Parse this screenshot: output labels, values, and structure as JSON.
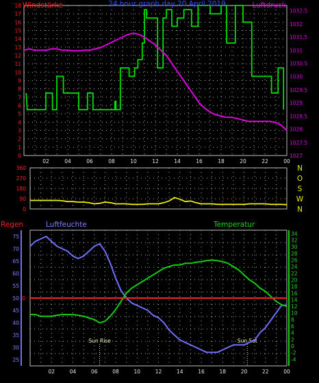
{
  "colors": {
    "background": "#000000",
    "frame": "#c0c0c0",
    "grid": "#b0b0b0",
    "wind": "#00e000",
    "pressure": "#e000e0",
    "direction": "#f0f000",
    "humidity": "#7070ff",
    "temperature": "#10d010",
    "rain": "#ff2020",
    "title": "#3050ff",
    "tick_red": "#ff2020",
    "tick_blue": "#8080ff",
    "tick_green": "#20d020",
    "tick_white": "#e8e8e8",
    "tick_yellow": "#e8e800",
    "sun_label": "#f0f0b0"
  },
  "chart_data": [
    {
      "type": "line",
      "title": "24 hour graph day   20 April 2019",
      "x_tick_labels": [
        "02",
        "04",
        "06",
        "08",
        "10",
        "12",
        "14",
        "16",
        "18",
        "20",
        "22",
        "00"
      ],
      "xlim": [
        0,
        24
      ],
      "grid": true,
      "series": [
        {
          "name": "Windstärke",
          "axis": "left",
          "ylim": [
            0,
            18
          ],
          "y_tick_labels": [
            "0",
            "1",
            "2",
            "3",
            "4",
            "5",
            "6",
            "7",
            "8",
            "9",
            "10",
            "11",
            "12",
            "13",
            "14",
            "15",
            "16",
            "17",
            "18"
          ],
          "points": [
            [
              0.2,
              7.5
            ],
            [
              0.3,
              5.5
            ],
            [
              2.0,
              5.5
            ],
            [
              2.0,
              7.5
            ],
            [
              2.6,
              7.5
            ],
            [
              2.6,
              5.5
            ],
            [
              3.0,
              5.5
            ],
            [
              3.0,
              9.5
            ],
            [
              3.6,
              9.5
            ],
            [
              3.6,
              7.5
            ],
            [
              5.0,
              7.5
            ],
            [
              5.0,
              5.5
            ],
            [
              5.8,
              5.5
            ],
            [
              5.8,
              7.5
            ],
            [
              6.3,
              7.5
            ],
            [
              6.3,
              5.5
            ],
            [
              8.3,
              5.5
            ],
            [
              8.3,
              6.5
            ],
            [
              8.4,
              6.5
            ],
            [
              8.4,
              5.5
            ],
            [
              8.8,
              5.5
            ],
            [
              8.8,
              10.5
            ],
            [
              9.6,
              10.5
            ],
            [
              9.6,
              9.5
            ],
            [
              10.1,
              9.5
            ],
            [
              10.1,
              10.5
            ],
            [
              10.4,
              10.5
            ],
            [
              10.4,
              11.5
            ],
            [
              10.8,
              11.5
            ],
            [
              10.8,
              13.5
            ],
            [
              11.0,
              13.5
            ],
            [
              11.0,
              17.5
            ],
            [
              11.2,
              17.5
            ],
            [
              11.2,
              16.5
            ],
            [
              12.2,
              16.5
            ],
            [
              12.2,
              10.5
            ],
            [
              12.7,
              10.5
            ],
            [
              12.7,
              16.5
            ],
            [
              13.0,
              16.5
            ],
            [
              13.0,
              17.5
            ],
            [
              13.5,
              17.5
            ],
            [
              13.5,
              15.5
            ],
            [
              14.0,
              15.5
            ],
            [
              14.0,
              16.5
            ],
            [
              14.6,
              16.5
            ],
            [
              14.6,
              17.5
            ],
            [
              15.3,
              17.5
            ],
            [
              15.3,
              15.5
            ],
            [
              15.9,
              15.5
            ],
            [
              15.9,
              18.0
            ],
            [
              17.0,
              18.0
            ],
            [
              17.0,
              17.0
            ],
            [
              18.0,
              17.0
            ],
            [
              18.0,
              18.0
            ],
            [
              18.5,
              18.0
            ],
            [
              18.5,
              13.5
            ],
            [
              19.3,
              13.5
            ],
            [
              19.3,
              18.0
            ],
            [
              20.0,
              18.0
            ],
            [
              20.0,
              16.0
            ],
            [
              20.8,
              16.0
            ],
            [
              20.8,
              9.5
            ],
            [
              22.6,
              9.5
            ],
            [
              22.6,
              7.5
            ],
            [
              23.2,
              7.5
            ],
            [
              23.2,
              10.5
            ],
            [
              23.7,
              10.5
            ],
            [
              23.7,
              5.5
            ]
          ]
        },
        {
          "name": "Luftdruck",
          "axis": "right",
          "ylim": [
            1027,
            1032.7
          ],
          "y_tick_labels": [
            "1027",
            "1027.5",
            "1028",
            "1028.5",
            "1029",
            "1029.5",
            "1030",
            "1030.5",
            "1031",
            "1031.5",
            "1032",
            "1032.5"
          ],
          "x": [
            0,
            0.5,
            1,
            1.5,
            2,
            2.5,
            3,
            3.5,
            4,
            4.5,
            5,
            5.5,
            6,
            6.5,
            7,
            7.5,
            8,
            8.5,
            9,
            9.5,
            10,
            10.5,
            11,
            11.5,
            12,
            12.5,
            13,
            13.5,
            14,
            14.5,
            15,
            15.5,
            16,
            16.5,
            17,
            17.5,
            18,
            18.5,
            19,
            19.5,
            20,
            20.5,
            21,
            21.5,
            22,
            22.5,
            23,
            23.5,
            24
          ],
          "values": [
            1031.0,
            1031.05,
            1031.0,
            1031.0,
            1031.0,
            1031.05,
            1031.05,
            1031.0,
            1031.0,
            1030.98,
            1030.98,
            1031.0,
            1031.0,
            1031.05,
            1031.1,
            1031.2,
            1031.3,
            1031.4,
            1031.5,
            1031.6,
            1031.65,
            1031.6,
            1031.5,
            1031.35,
            1031.2,
            1031.0,
            1030.8,
            1030.5,
            1030.2,
            1029.9,
            1029.6,
            1029.3,
            1029.0,
            1028.8,
            1028.65,
            1028.55,
            1028.5,
            1028.45,
            1028.45,
            1028.4,
            1028.35,
            1028.3,
            1028.3,
            1028.3,
            1028.3,
            1028.3,
            1028.25,
            1028.15,
            1027.95
          ]
        }
      ],
      "left_axis_label": "Windstärke",
      "right_axis_label": "Luftdruck"
    },
    {
      "type": "line",
      "xlim": [
        0,
        24
      ],
      "grid": true,
      "ylim": [
        0,
        360
      ],
      "left_tick_labels": [
        "0",
        "90",
        "180",
        "270",
        "360"
      ],
      "right_tick_labels": [
        "N",
        "W",
        "S",
        "O",
        "N"
      ],
      "series": [
        {
          "name": "",
          "x": [
            0,
            0.5,
            1,
            1.5,
            2,
            2.5,
            3,
            3.5,
            4,
            4.5,
            5,
            5.5,
            6,
            6.5,
            7,
            7.5,
            8,
            8.5,
            9,
            9.5,
            10,
            10.5,
            11,
            11.5,
            12,
            12.5,
            13,
            13.5,
            14,
            14.5,
            15,
            15.5,
            16,
            16.5,
            17,
            17.5,
            18,
            18.5,
            19,
            19.5,
            20,
            20.5,
            21,
            21.5,
            22,
            22.5,
            23,
            23.5,
            24
          ],
          "values": [
            75,
            75,
            75,
            75,
            75,
            75,
            72,
            65,
            65,
            60,
            60,
            55,
            45,
            50,
            60,
            55,
            45,
            45,
            45,
            40,
            40,
            40,
            45,
            45,
            45,
            55,
            70,
            100,
            85,
            65,
            70,
            55,
            45,
            45,
            45,
            40,
            40,
            40,
            40,
            40,
            40,
            45,
            45,
            45,
            45,
            40,
            40,
            40,
            38
          ]
        }
      ]
    },
    {
      "type": "line",
      "xlim": [
        0,
        24
      ],
      "grid": true,
      "x_tick_labels": [
        "02",
        "04",
        "06",
        "08",
        "10",
        "12",
        "14",
        "16",
        "18",
        "20",
        "22",
        "00"
      ],
      "left_label": "Regen",
      "mid_label": "Luftfeuchte",
      "right_label": "Temperatur",
      "rain_ylim": [
        0,
        100
      ],
      "rain_tick_labels": [
        "0"
      ],
      "humidity_ylim": [
        22.5,
        77.5
      ],
      "humidity_tick_labels": [
        "25",
        "30",
        "35",
        "40",
        "45",
        "50",
        "55",
        "60",
        "65",
        "70",
        "75"
      ],
      "temperature_ylim": [
        -6,
        35
      ],
      "temperature_tick_labels": [
        "-4",
        "-2",
        "0",
        "2",
        "4",
        "6",
        "8",
        "10",
        "12",
        "14",
        "16",
        "18",
        "20",
        "22",
        "24",
        "26",
        "28",
        "30",
        "32",
        "34"
      ],
      "annotations": [
        {
          "text": "Sun Rise",
          "x": 6.5
        },
        {
          "text": "Sun Set",
          "x": 20.3
        }
      ],
      "series": [
        {
          "name": "Luftfeuchte",
          "axis": "humidity",
          "x": [
            0,
            0.5,
            1,
            1.5,
            2,
            2.5,
            3,
            3.5,
            4,
            4.5,
            5,
            5.5,
            6,
            6.5,
            7,
            7.5,
            8,
            8.5,
            9,
            9.5,
            10,
            10.5,
            11,
            11.5,
            12,
            12.5,
            13,
            13.5,
            14,
            14.5,
            15,
            15.5,
            16,
            16.5,
            17,
            17.5,
            18,
            18.5,
            19,
            19.5,
            20,
            20.5,
            21,
            21.5,
            22,
            22.5,
            23,
            23.5,
            24
          ],
          "values": [
            71,
            73,
            74,
            75,
            73,
            71,
            70,
            69,
            67,
            66,
            67,
            69,
            71,
            72,
            69,
            64,
            58,
            53,
            50,
            48,
            47,
            46,
            45,
            43,
            42,
            40,
            37,
            35,
            33,
            32,
            31,
            30,
            29,
            28,
            28,
            28,
            29,
            30,
            31,
            31,
            31,
            32,
            33,
            36,
            38,
            41,
            44,
            47,
            47
          ]
        },
        {
          "name": "Temperatur",
          "axis": "temperature",
          "x": [
            0,
            0.5,
            1,
            1.5,
            2,
            2.5,
            3,
            3.5,
            4,
            4.5,
            5,
            5.5,
            6,
            6.5,
            7,
            7.5,
            8,
            8.5,
            9,
            9.5,
            10,
            10.5,
            11,
            11.5,
            12,
            12.5,
            13,
            13.5,
            14,
            14.5,
            15,
            15.5,
            16,
            16.5,
            17,
            17.5,
            18,
            18.5,
            19,
            19.5,
            20,
            20.5,
            21,
            21.5,
            22,
            22.5,
            23,
            23.5,
            24
          ],
          "values": [
            9.5,
            9.5,
            9,
            9,
            9,
            9.3,
            9.5,
            9.5,
            9.5,
            9.3,
            9,
            8.5,
            8,
            7,
            7.5,
            9,
            11,
            13.5,
            16,
            17.5,
            18.5,
            19.5,
            20.5,
            21.5,
            22.5,
            23.5,
            24,
            24.5,
            24.5,
            25,
            25,
            25.3,
            25.5,
            25.8,
            26,
            25.8,
            25.5,
            25,
            24,
            23,
            21.5,
            20,
            19,
            17.5,
            16.5,
            15,
            13.5,
            12.5,
            12
          ]
        },
        {
          "name": "Regen",
          "axis": "rain",
          "x": [
            0,
            24
          ],
          "values": [
            0,
            0
          ]
        }
      ]
    }
  ]
}
